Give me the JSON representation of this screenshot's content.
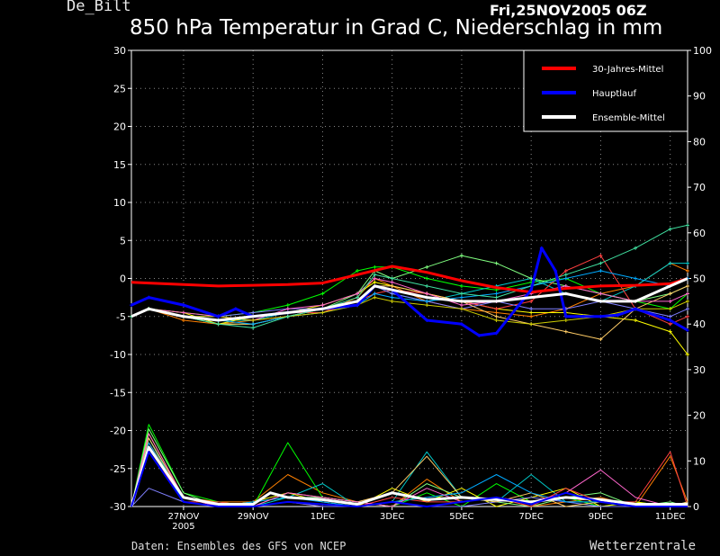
{
  "header": {
    "station": "De_Bilt",
    "run_time": "Fri,25NOV2005 06Z",
    "title": "850 hPa Temperatur in Grad C, Niederschlag in mm"
  },
  "footer": {
    "source": "Daten: Ensembles des GFS von NCEP",
    "brand": "Wetterzentrale"
  },
  "colors": {
    "climate": "#ff0000",
    "main_run": "#0000ff",
    "ensemble_mean": "#ffffff",
    "members": [
      "#ff8000",
      "#00ff00",
      "#00c8c8",
      "#ffff00",
      "#80ff80",
      "#ff4040",
      "#8080ff",
      "#ffcc66",
      "#00aaff",
      "#ff66cc",
      "#cccc00",
      "#40e0a0"
    ]
  },
  "chart_data": {
    "type": "line",
    "x_ticks": [
      "27NOV",
      "29NOV",
      "1DEC",
      "3DEC",
      "5DEC",
      "7DEC",
      "9DEC",
      "11DEC"
    ],
    "x_tick_sub": [
      "2005",
      "",
      "",
      "",
      "",
      "",
      "",
      ""
    ],
    "x_day_range": [
      25.5,
      41.5
    ],
    "x_tick_days": [
      27,
      29,
      31,
      33,
      35,
      37,
      39,
      41
    ],
    "y_left": {
      "label": "Temperatur",
      "unit": "Grad C",
      "range": [
        -30,
        30
      ],
      "ticks": [
        -30,
        -25,
        -20,
        -15,
        -10,
        -5,
        0,
        5,
        10,
        15,
        20,
        25,
        30
      ]
    },
    "y_right": {
      "label": "Niederschlag",
      "unit": "mm",
      "range": [
        0,
        100
      ],
      "ticks": [
        0,
        10,
        20,
        30,
        40,
        50,
        60,
        70,
        80,
        90,
        100
      ]
    },
    "grid": true,
    "legend": {
      "position": "top-right",
      "entries": [
        {
          "label": "30-Jahres-Mittel",
          "color": "#ff0000"
        },
        {
          "label": "Hauptlauf",
          "color": "#0000ff"
        },
        {
          "label": "Ensemble-Mittel",
          "color": "#ffffff"
        }
      ]
    },
    "temperature_series": [
      {
        "name": "30-Jahres-Mittel",
        "kind": "climate",
        "days": [
          25.5,
          26,
          27,
          28,
          29,
          30,
          31,
          32,
          33,
          34,
          35,
          36,
          37,
          38,
          39,
          40,
          41,
          41.5
        ],
        "values": [
          -0.5,
          -0.6,
          -0.8,
          -1,
          -0.9,
          -0.8,
          -0.6,
          0.5,
          1.6,
          0.8,
          -0.3,
          -1.2,
          -1.8,
          -1.3,
          -1,
          -0.9,
          -0.7,
          0
        ]
      },
      {
        "name": "Hauptlauf",
        "kind": "main",
        "days": [
          25.5,
          26,
          27,
          28,
          28.5,
          29,
          30,
          31,
          32,
          32.5,
          33,
          33.5,
          34,
          35,
          35.5,
          36,
          37,
          37.3,
          37.7,
          38,
          38.5,
          39,
          39.5,
          40,
          41,
          41.5
        ],
        "values": [
          -3.5,
          -2.5,
          -3.5,
          -5,
          -4,
          -5,
          -4.5,
          -4,
          -3.5,
          -1,
          -1.5,
          -3.5,
          -5.5,
          -6,
          -7.5,
          -7.2,
          -1.5,
          4,
          1,
          -5,
          -5,
          -5,
          -4.8,
          -4,
          -5.5,
          -6.8
        ]
      },
      {
        "name": "Ensemble-Mittel",
        "kind": "mean",
        "days": [
          25.5,
          26,
          27,
          28,
          29,
          30,
          31,
          32,
          32.5,
          33,
          34,
          35,
          36,
          37,
          38,
          39,
          40,
          41,
          41.5
        ],
        "values": [
          -5,
          -4,
          -5,
          -5.5,
          -5,
          -4.5,
          -4,
          -3,
          -1,
          -1.5,
          -2.5,
          -3,
          -3,
          -2.5,
          -2,
          -3,
          -3,
          -1,
          0
        ]
      }
    ],
    "temperature_members": [
      [
        -5,
        -4,
        -5.5,
        -6,
        -5.5,
        -5,
        -4.5,
        -2.5,
        0,
        -1,
        -3,
        -4,
        -4.5,
        -5,
        -4,
        -2,
        -1,
        2,
        1
      ],
      [
        -5,
        -4,
        -4.5,
        -5,
        -4.5,
        -3.5,
        -2,
        1,
        1.5,
        1.5,
        0,
        -1,
        -1.5,
        -0.5,
        0,
        -2,
        -3,
        -4,
        -2
      ],
      [
        -5,
        -4,
        -5,
        -5.5,
        -5.5,
        -4.5,
        -4,
        -3.5,
        -1,
        -2,
        -3,
        -2,
        -1,
        0,
        -2,
        -3,
        -1,
        2,
        2
      ],
      [
        -5,
        -4,
        -4.5,
        -6,
        -5,
        -4.5,
        -3.5,
        -2,
        -0.5,
        -1,
        -2,
        -3,
        -4,
        -4.5,
        -4.5,
        -5,
        -5.5,
        -7,
        -10
      ],
      [
        -5,
        -4,
        -5,
        -6,
        -6,
        -5,
        -4,
        -2,
        1,
        0,
        1.5,
        3,
        2,
        0,
        -1,
        -2,
        -3,
        -2,
        -1
      ],
      [
        -5,
        -4,
        -5,
        -5.5,
        -5,
        -4.5,
        -4.5,
        -3,
        -2,
        -1.5,
        -2,
        -3,
        -4,
        -3,
        1,
        3,
        -4,
        -6,
        -5
      ],
      [
        -5,
        -4,
        -5,
        -5,
        -4.5,
        -4,
        -4,
        -3,
        -1,
        -2,
        -3,
        -4,
        -3,
        -4,
        -4,
        -3,
        -4,
        -5,
        -4
      ],
      [
        -5,
        -4,
        -5,
        -6,
        -6,
        -5,
        -4,
        -3,
        -1,
        -1,
        -2,
        -3,
        -5,
        -6,
        -7,
        -8,
        -4,
        -2,
        -1
      ],
      [
        -5,
        -4,
        -5,
        -5.5,
        -6,
        -5,
        -4.5,
        -3.5,
        -2,
        -2.5,
        -3,
        -2.5,
        -2,
        -1,
        0,
        1,
        0,
        -1,
        0
      ],
      [
        -5,
        -4,
        -4.5,
        -5,
        -5.5,
        -4,
        -3.5,
        -2,
        0,
        -0.5,
        -2,
        -3.5,
        -3,
        -2,
        -1,
        -2,
        -3,
        -3,
        -2
      ],
      [
        -5,
        -4,
        -5,
        -5,
        -5.5,
        -5,
        -4.5,
        -3.5,
        -2.5,
        -3,
        -3.5,
        -4,
        -5.5,
        -6,
        -5.5,
        -5,
        -4,
        -4,
        -3
      ],
      [
        -5,
        -4,
        -5,
        -6,
        -6.5,
        -5,
        -4,
        -2.5,
        0.5,
        0,
        -1,
        -2,
        -2.5,
        -1,
        0.5,
        2,
        4,
        6.5,
        7
      ]
    ],
    "member_days": [
      25.5,
      26,
      27,
      28,
      29,
      30,
      31,
      32,
      32.5,
      33,
      34,
      35,
      36,
      37,
      38,
      39,
      40,
      41,
      41.5
    ],
    "precip_series": [
      {
        "name": "Ensemble-Mittel",
        "kind": "mean",
        "days": [
          25.5,
          26,
          27,
          28,
          29,
          29.5,
          30,
          31,
          32,
          33,
          34,
          35,
          36,
          37,
          38,
          39,
          40,
          41,
          41.5
        ],
        "values": [
          0,
          13,
          2,
          0.5,
          0.5,
          3,
          2,
          1.5,
          0.5,
          3,
          1.5,
          2,
          1.5,
          1,
          2,
          1.5,
          0.5,
          0.5,
          0.5
        ]
      },
      {
        "name": "Hauptlauf",
        "kind": "main",
        "days": [
          25.5,
          26,
          27,
          28,
          29,
          30,
          31,
          32,
          33,
          34,
          35,
          36,
          37,
          38,
          39,
          40,
          41,
          41.5
        ],
        "values": [
          0,
          12,
          1,
          0,
          0,
          1,
          0.5,
          0,
          1,
          0,
          1,
          2,
          0.5,
          3,
          1,
          0,
          0,
          0
        ]
      }
    ],
    "precip_members": [
      [
        0,
        14,
        2,
        1,
        1,
        7,
        3,
        1,
        0,
        6,
        1,
        2,
        0,
        1,
        2,
        0,
        11,
        1
      ],
      [
        0,
        18,
        3,
        1,
        0,
        14,
        2,
        1,
        0,
        3,
        0,
        5,
        1,
        2,
        0,
        1,
        0,
        0
      ],
      [
        0,
        15,
        1,
        0,
        0,
        2,
        5,
        0,
        1,
        12,
        2,
        1,
        7,
        1,
        1,
        0,
        0,
        1
      ],
      [
        0,
        16,
        2,
        0,
        1,
        3,
        1,
        0,
        4,
        1,
        4,
        0,
        2,
        4,
        0,
        1,
        0,
        0
      ],
      [
        0,
        17,
        3,
        0,
        1,
        2,
        2,
        1,
        0,
        5,
        2,
        1,
        0,
        2,
        3,
        0,
        1,
        0
      ],
      [
        0,
        13,
        1,
        1,
        0,
        1,
        0,
        0,
        2,
        1,
        1,
        2,
        0,
        4,
        1,
        1,
        12,
        0
      ],
      [
        0,
        4,
        1,
        0,
        0,
        1,
        0,
        0,
        1,
        0,
        0,
        1,
        2,
        1,
        0,
        0,
        0,
        0
      ],
      [
        0,
        15,
        2,
        0,
        0,
        3,
        2,
        1,
        3,
        11,
        2,
        1,
        3,
        0,
        1,
        0,
        0,
        1
      ],
      [
        0,
        14,
        1,
        0,
        1,
        2,
        1,
        0,
        1,
        2,
        3,
        7,
        3,
        1,
        1,
        0,
        0,
        0
      ],
      [
        0,
        16,
        2,
        0,
        0,
        3,
        2,
        1,
        0,
        4,
        1,
        2,
        1,
        3,
        8,
        2,
        0,
        0
      ]
    ],
    "precip_days": [
      25.5,
      26,
      27,
      28,
      29,
      30,
      31,
      32,
      33,
      34,
      35,
      36,
      37,
      38,
      39,
      40,
      41,
      41.5
    ]
  }
}
